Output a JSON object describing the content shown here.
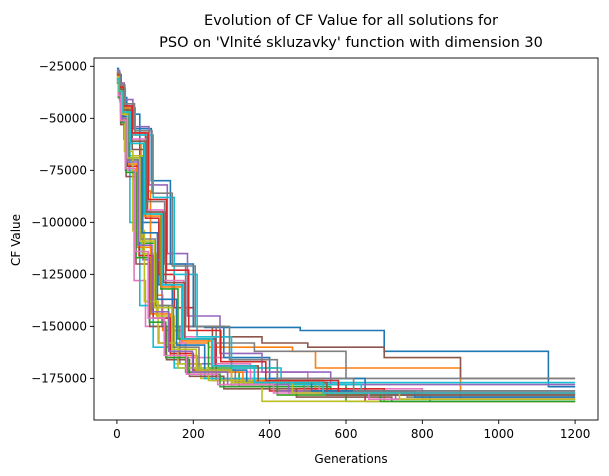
{
  "chart_data": {
    "type": "line",
    "title": [
      "Evolution of CF Value for all solutions for",
      "PSO on 'Vlnité skluzavky' function with dimension 30"
    ],
    "xlabel": "Generations",
    "ylabel": "CF Value",
    "xlim": [
      -60,
      1260
    ],
    "ylim": [
      -195000,
      -21000
    ],
    "xticks": [
      0,
      200,
      400,
      600,
      800,
      1000,
      1200
    ],
    "yticks": [
      -25000,
      -50000,
      -75000,
      -100000,
      -125000,
      -150000,
      -175000
    ],
    "grid": false,
    "legend": "none",
    "series": [
      {
        "color": "#1f77b4",
        "x": [
          0,
          4,
          11,
          26,
          60,
          110,
          145,
          230,
          480,
          700,
          1130,
          1200
        ],
        "y": [
          -26000,
          -29000,
          -40000,
          -48000,
          -100000,
          -130000,
          -150000,
          -150500,
          -152000,
          -162000,
          -179000,
          -179000
        ]
      },
      {
        "color": "#ff7f0e",
        "x": [
          0,
          5,
          14,
          30,
          63,
          88,
          120,
          170,
          240,
          460,
          520,
          900,
          1200
        ],
        "y": [
          -28000,
          -33000,
          -44000,
          -62000,
          -85000,
          -135000,
          -152000,
          -158000,
          -160000,
          -162000,
          -170000,
          -183000,
          -183000
        ]
      },
      {
        "color": "#2ca02c",
        "x": [
          0,
          4,
          12,
          28,
          55,
          100,
          135,
          180,
          320,
          560,
          820,
          1200
        ],
        "y": [
          -30000,
          -36000,
          -46000,
          -70000,
          -110000,
          -140000,
          -160000,
          -172000,
          -179000,
          -183000,
          -186000,
          -186000
        ]
      },
      {
        "color": "#d62728",
        "x": [
          0,
          6,
          16,
          35,
          75,
          110,
          150,
          200,
          260,
          400,
          650,
          1200
        ],
        "y": [
          -29000,
          -37000,
          -48000,
          -57000,
          -98000,
          -125000,
          -141000,
          -150000,
          -176000,
          -181000,
          -186000,
          -186000
        ]
      },
      {
        "color": "#9467bd",
        "x": [
          0,
          5,
          14,
          32,
          68,
          118,
          165,
          250,
          420,
          620,
          900,
          1200
        ],
        "y": [
          -31000,
          -39000,
          -52000,
          -75000,
          -118000,
          -150000,
          -168000,
          -176000,
          -181000,
          -183000,
          -185000,
          -185000
        ]
      },
      {
        "color": "#8c564b",
        "x": [
          0,
          7,
          18,
          40,
          80,
          128,
          170,
          250,
          380,
          500,
          700,
          900,
          1200
        ],
        "y": [
          -33000,
          -41000,
          -50000,
          -65000,
          -95000,
          -130000,
          -150000,
          -155000,
          -158000,
          -160000,
          -165000,
          -175000,
          -175000
        ]
      },
      {
        "color": "#e377c2",
        "x": [
          0,
          4,
          10,
          22,
          45,
          75,
          110,
          180,
          300,
          500,
          800,
          1200
        ],
        "y": [
          -32000,
          -38000,
          -49000,
          -75000,
          -128000,
          -150000,
          -158000,
          -165000,
          -172000,
          -180000,
          -185000,
          -185000
        ]
      },
      {
        "color": "#7f7f7f",
        "x": [
          0,
          6,
          17,
          38,
          78,
          125,
          180,
          260,
          360,
          600,
          1200
        ],
        "y": [
          -28000,
          -34000,
          -45000,
          -58000,
          -90000,
          -120000,
          -150000,
          -158000,
          -162000,
          -175000,
          -175000
        ]
      },
      {
        "color": "#bcbd22",
        "x": [
          0,
          5,
          13,
          30,
          66,
          104,
          150,
          220,
          300,
          420,
          700,
          1200
        ],
        "y": [
          -30000,
          -36000,
          -47000,
          -68000,
          -115000,
          -145000,
          -168000,
          -175000,
          -179000,
          -183000,
          -186000,
          -186000
        ]
      },
      {
        "color": "#17becf",
        "x": [
          0,
          3,
          8,
          18,
          34,
          60,
          95,
          150,
          230,
          400,
          1200
        ],
        "y": [
          -27000,
          -32000,
          -42000,
          -60000,
          -100000,
          -140000,
          -160000,
          -170000,
          -175000,
          -177000,
          -177000
        ]
      },
      {
        "color": "#1f77b4",
        "x": [
          0,
          8,
          20,
          44,
          90,
          140,
          200,
          280,
          400,
          650,
          1200
        ],
        "y": [
          -29000,
          -35000,
          -43000,
          -55000,
          -80000,
          -120000,
          -150000,
          -165000,
          -175000,
          -181000,
          -181000
        ]
      },
      {
        "color": "#ff7f0e",
        "x": [
          0,
          4,
          11,
          25,
          52,
          90,
          140,
          210,
          330,
          520,
          800,
          1200
        ],
        "y": [
          -31000,
          -38000,
          -50000,
          -72000,
          -112000,
          -144000,
          -164000,
          -172000,
          -178000,
          -182000,
          -185000,
          -185000
        ]
      },
      {
        "color": "#2ca02c",
        "x": [
          0,
          6,
          15,
          33,
          70,
          115,
          160,
          240,
          420,
          600,
          1200
        ],
        "y": [
          -30000,
          -37000,
          -46000,
          -62000,
          -96000,
          -132000,
          -156000,
          -170000,
          -178000,
          -186000,
          -186000
        ]
      },
      {
        "color": "#d62728",
        "x": [
          0,
          5,
          12,
          27,
          58,
          95,
          140,
          200,
          300,
          450,
          700,
          1200
        ],
        "y": [
          -32000,
          -39000,
          -51000,
          -73000,
          -116000,
          -146000,
          -163000,
          -171000,
          -176000,
          -180000,
          -183000,
          -183000
        ]
      },
      {
        "color": "#9467bd",
        "x": [
          0,
          7,
          19,
          42,
          84,
          132,
          185,
          270,
          380,
          560,
          1200
        ],
        "y": [
          -27000,
          -33000,
          -41000,
          -54000,
          -82000,
          -115000,
          -145000,
          -163000,
          -172000,
          -178000,
          -178000
        ]
      },
      {
        "color": "#8c564b",
        "x": [
          0,
          4,
          10,
          24,
          50,
          86,
          130,
          190,
          280,
          470,
          720,
          1200
        ],
        "y": [
          -33000,
          -40000,
          -53000,
          -78000,
          -120000,
          -150000,
          -166000,
          -174000,
          -180000,
          -184000,
          -186000,
          -186000
        ]
      },
      {
        "color": "#e377c2",
        "x": [
          0,
          6,
          16,
          36,
          74,
          120,
          175,
          255,
          350,
          530,
          1200
        ],
        "y": [
          -28000,
          -34000,
          -44000,
          -60000,
          -94000,
          -128000,
          -155000,
          -168000,
          -176000,
          -182000,
          -182000
        ]
      },
      {
        "color": "#7f7f7f",
        "x": [
          0,
          5,
          13,
          29,
          62,
          100,
          148,
          215,
          310,
          490,
          760,
          1200
        ],
        "y": [
          -31000,
          -38000,
          -48000,
          -70000,
          -108000,
          -140000,
          -160000,
          -171000,
          -177000,
          -181000,
          -184000,
          -184000
        ]
      },
      {
        "color": "#bcbd22",
        "x": [
          0,
          4,
          9,
          20,
          42,
          72,
          108,
          160,
          240,
          380,
          1200
        ],
        "y": [
          -29000,
          -36000,
          -47000,
          -66000,
          -104000,
          -138000,
          -158000,
          -170000,
          -176000,
          -186000,
          -186000
        ]
      },
      {
        "color": "#17becf",
        "x": [
          0,
          8,
          22,
          48,
          95,
          150,
          210,
          300,
          430,
          640,
          1200
        ],
        "y": [
          -30000,
          -36000,
          -45000,
          -58000,
          -88000,
          -125000,
          -155000,
          -170000,
          -178000,
          -183000,
          -183000
        ]
      },
      {
        "color": "#1f77b4",
        "x": [
          0,
          5,
          14,
          31,
          66,
          106,
          156,
          230,
          340,
          510,
          780,
          1200
        ],
        "y": [
          -32000,
          -38000,
          -49000,
          -69000,
          -105000,
          -137000,
          -159000,
          -171000,
          -177000,
          -181000,
          -184000,
          -184000
        ]
      },
      {
        "color": "#ff7f0e",
        "x": [
          0,
          6,
          15,
          34,
          72,
          116,
          170,
          248,
          360,
          540,
          1200
        ],
        "y": [
          -28000,
          -35000,
          -45000,
          -61000,
          -97000,
          -131000,
          -157000,
          -169000,
          -176000,
          -182000,
          -182000
        ]
      },
      {
        "color": "#2ca02c",
        "x": [
          0,
          4,
          11,
          24,
          50,
          85,
          128,
          186,
          270,
          420,
          690,
          1200
        ],
        "y": [
          -33000,
          -40000,
          -52000,
          -76000,
          -117000,
          -148000,
          -165000,
          -173000,
          -179000,
          -183000,
          -186000,
          -186000
        ]
      },
      {
        "color": "#d62728",
        "x": [
          0,
          7,
          18,
          40,
          82,
          130,
          188,
          272,
          390,
          580,
          1200
        ],
        "y": [
          -29000,
          -35000,
          -44000,
          -57000,
          -89000,
          -123000,
          -152000,
          -167000,
          -176000,
          -182000,
          -182000
        ]
      },
      {
        "color": "#9467bd",
        "x": [
          0,
          5,
          12,
          26,
          56,
          92,
          136,
          198,
          290,
          450,
          730,
          1200
        ],
        "y": [
          -31000,
          -38000,
          -50000,
          -71000,
          -111000,
          -143000,
          -162000,
          -172000,
          -178000,
          -182000,
          -185000,
          -185000
        ]
      },
      {
        "color": "#8c564b",
        "x": [
          0,
          6,
          17,
          37,
          76,
          122,
          178,
          258,
          370,
          550,
          1200
        ],
        "y": [
          -30000,
          -36000,
          -46000,
          -61000,
          -95000,
          -129000,
          -156000,
          -169000,
          -177000,
          -183000,
          -183000
        ]
      },
      {
        "color": "#e377c2",
        "x": [
          0,
          4,
          10,
          23,
          48,
          82,
          124,
          182,
          264,
          410,
          660,
          1200
        ],
        "y": [
          -32000,
          -39000,
          -51000,
          -74000,
          -114000,
          -146000,
          -164000,
          -173000,
          -178000,
          -182000,
          -185000,
          -185000
        ]
      },
      {
        "color": "#7f7f7f",
        "x": [
          0,
          8,
          21,
          46,
          92,
          145,
          205,
          295,
          420,
          620,
          1200
        ],
        "y": [
          -28000,
          -34000,
          -43000,
          -56000,
          -86000,
          -121000,
          -150000,
          -166000,
          -175000,
          -181000,
          -181000
        ]
      },
      {
        "color": "#bcbd22",
        "x": [
          0,
          5,
          13,
          28,
          60,
          98,
          144,
          208,
          300,
          460,
          740,
          1200
        ],
        "y": [
          -30000,
          -37000,
          -48000,
          -69000,
          -109000,
          -141000,
          -161000,
          -171000,
          -177000,
          -182000,
          -185000,
          -185000
        ]
      },
      {
        "color": "#17becf",
        "x": [
          0,
          6,
          16,
          35,
          73,
          118,
          172,
          250,
          360,
          540,
          1200
        ],
        "y": [
          -31000,
          -37000,
          -47000,
          -62000,
          -96000,
          -130000,
          -156000,
          -169000,
          -177000,
          -182000,
          -182000
        ]
      }
    ]
  }
}
